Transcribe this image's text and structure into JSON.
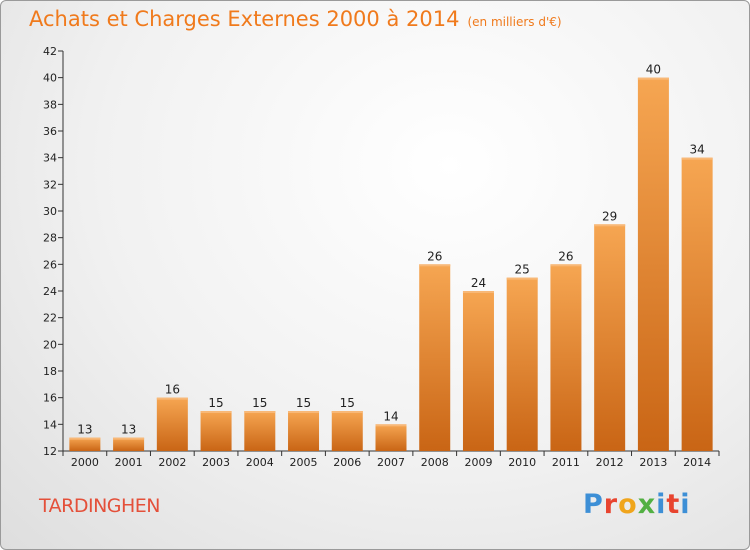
{
  "chart_data": {
    "type": "bar",
    "title": "Achats et Charges Externes 2000 à 2014",
    "subtitle": "(en milliers d'€)",
    "categories": [
      "2000",
      "2001",
      "2002",
      "2003",
      "2004",
      "2005",
      "2006",
      "2007",
      "2008",
      "2009",
      "2010",
      "2011",
      "2012",
      "2013",
      "2014"
    ],
    "values": [
      13,
      13,
      16,
      15,
      15,
      15,
      15,
      14,
      26,
      24,
      25,
      26,
      29,
      40,
      34
    ],
    "ylim": [
      12,
      42
    ],
    "yticks": [
      12,
      14,
      16,
      18,
      20,
      22,
      24,
      26,
      28,
      30,
      32,
      34,
      36,
      38,
      40,
      42
    ],
    "grid": false,
    "bar_color": "#f0923a"
  },
  "footer": {
    "commune": "TARDINGHEN",
    "logo_letters": [
      "P",
      "r",
      "o",
      "x",
      "i",
      "t",
      "i"
    ]
  }
}
